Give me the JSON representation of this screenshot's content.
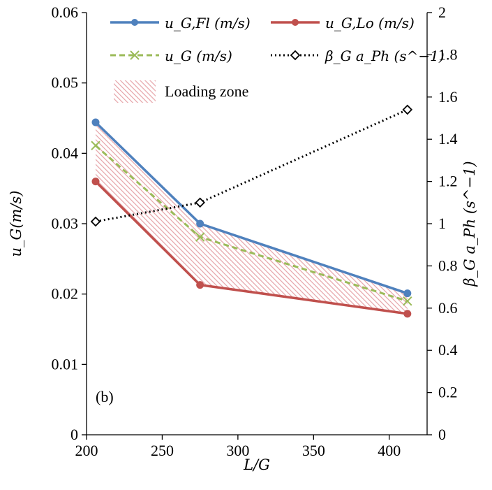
{
  "chart_data": {
    "type": "line",
    "panel_label": "(b)",
    "x": [
      206,
      275,
      412
    ],
    "xlim": [
      200,
      425
    ],
    "x_ticks": [
      200,
      250,
      300,
      350,
      400
    ],
    "xlabel": "L/G",
    "ylabel_left": "u_G(m/s)",
    "ylim_left": [
      0,
      0.06
    ],
    "y_ticks_left": [
      "0",
      "0.01",
      "0.02",
      "0.03",
      "0.04",
      "0.05",
      "0.06"
    ],
    "ylabel_right": "β_G a_Ph (s^−1)",
    "ylim_right": [
      0,
      2
    ],
    "y_ticks_right": [
      "0",
      "0.2",
      "0.4",
      "0.6",
      "0.8",
      "1",
      "1.2",
      "1.4",
      "1.6",
      "1.8",
      "2"
    ],
    "grid": false,
    "legend_position": "top",
    "series": [
      {
        "name": "u_G,Fl (m/s)",
        "axis": "left",
        "values": [
          0.0444,
          0.03,
          0.0201
        ],
        "color": "#4f81bd",
        "style": "solid",
        "marker": "circle"
      },
      {
        "name": "u_G,Lo (m/s)",
        "axis": "left",
        "values": [
          0.036,
          0.0213,
          0.0172
        ],
        "color": "#c0504d",
        "style": "solid",
        "marker": "circle"
      },
      {
        "name": "u_G (m/s)",
        "axis": "left",
        "values": [
          0.0411,
          0.0281,
          0.019
        ],
        "color": "#9bbb59",
        "style": "dashed",
        "marker": "x"
      },
      {
        "name": "β_G a_Ph (s^−1)",
        "axis": "right",
        "values": [
          1.01,
          1.1,
          1.54
        ],
        "color": "#000000",
        "style": "dotted",
        "marker": "diamond"
      }
    ],
    "shaded_region": {
      "name": "Loading zone",
      "between": [
        "u_G,Fl (m/s)",
        "u_G,Lo (m/s)"
      ],
      "color": "#e6a3a8"
    }
  }
}
